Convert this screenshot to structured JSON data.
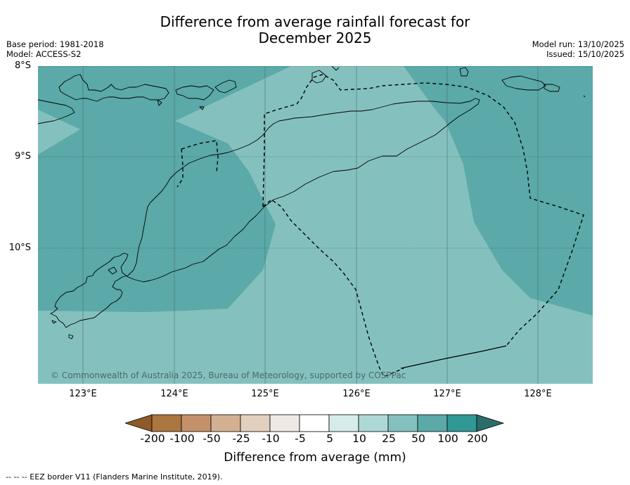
{
  "title_line1": "Difference from average rainfall forecast for",
  "title_line2": "December 2025",
  "meta_left": [
    "Base period: 1981-2018",
    "Model: ACCESS-S2"
  ],
  "meta_right": [
    "Model run: 13/10/2025",
    "Issued: 15/10/2025"
  ],
  "lat_labels": [
    "8°S",
    "9°S",
    "10°S"
  ],
  "lon_labels": [
    "123°E",
    "124°E",
    "125°E",
    "126°E",
    "127°E",
    "128°E"
  ],
  "copyright": "© Commonwealth of Australia 2025, Bureau of Meteorology, supported by COSPPac",
  "colorbar": {
    "title": "Difference from average (mm)",
    "labels": [
      "-200",
      "-100",
      "-50",
      "-25",
      "-10",
      "-5",
      "5",
      "10",
      "25",
      "50",
      "100",
      "200"
    ],
    "colors": [
      "#8e5a27",
      "#ab7640",
      "#c3926b",
      "#d2b091",
      "#e2cfbd",
      "#efe9e4",
      "#ffffff",
      "#d5ecea",
      "#aed8d5",
      "#84c1be",
      "#5ba9a9",
      "#319896",
      "#2a6e6a"
    ]
  },
  "footer": "--  --  -- EEZ border V11 (Flanders Marine Institute, 2019).",
  "palette": {
    "dark_band": "#5ba9a9",
    "light_band": "#84c1be"
  }
}
